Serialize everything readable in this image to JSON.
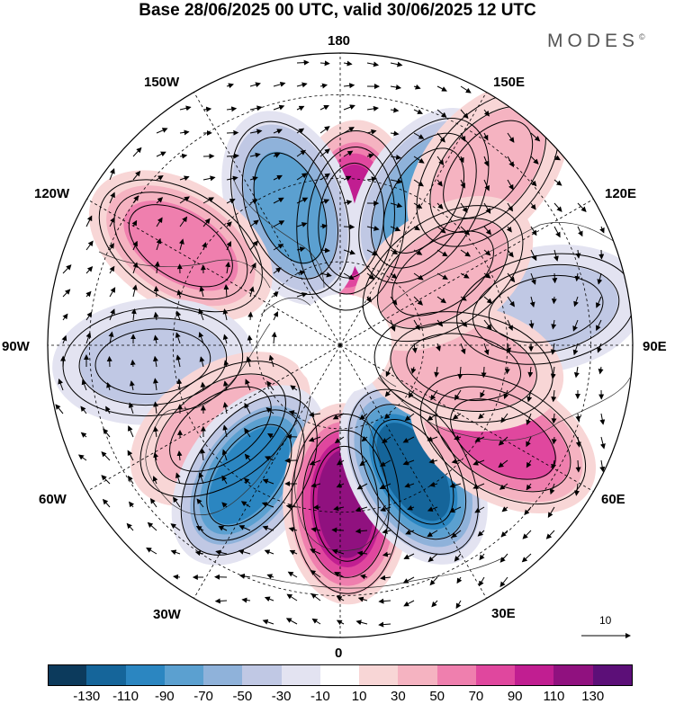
{
  "title": "Base 28/06/2025 00 UTC, valid 30/06/2025 12 UTC",
  "brand": {
    "name": "MODES",
    "mark": "©"
  },
  "longitude_labels": {
    "n180": "180",
    "e150": "150E",
    "e120": "120E",
    "e90": "90E",
    "e60": "60E",
    "e30": "30E",
    "s0": "0",
    "w30": "30W",
    "w60": "60W",
    "w90": "90W",
    "w120": "120W",
    "w150": "150W"
  },
  "reference_vector": {
    "label": "10"
  },
  "colorbar": {
    "colors": [
      "#0c3a5c",
      "#15659a",
      "#2b86c1",
      "#5ba0d0",
      "#8fb2da",
      "#c0c8e4",
      "#e3e3f1",
      "#ffffff",
      "#f8d6d6",
      "#f5b3c1",
      "#ef7fae",
      "#e0479e",
      "#c11e91",
      "#90117f",
      "#5c0f78"
    ],
    "labels": [
      "-130",
      "-110",
      "-90",
      "-70",
      "-50",
      "-30",
      "-10",
      "10",
      "30",
      "50",
      "70",
      "90",
      "110",
      "130"
    ]
  },
  "anomaly_field": {
    "units_reading": "same as colorbar",
    "centers": [
      {
        "lon": 175,
        "lat": 60,
        "value": 105
      },
      {
        "lon": 150,
        "lat": 50,
        "value": -70
      },
      {
        "lon": -160,
        "lat": 55,
        "value": -70
      },
      {
        "lon": 140,
        "lat": 35,
        "value": 40
      },
      {
        "lon": -122,
        "lat": 45,
        "value": 65
      },
      {
        "lon": -85,
        "lat": 45,
        "value": -40
      },
      {
        "lon": -55,
        "lat": 55,
        "value": 45
      },
      {
        "lon": -35,
        "lat": 52,
        "value": -90
      },
      {
        "lon": 2,
        "lat": 52,
        "value": 120
      },
      {
        "lon": 30,
        "lat": 55,
        "value": -110
      },
      {
        "lon": 60,
        "lat": 45,
        "value": 80
      },
      {
        "lon": 100,
        "lat": 40,
        "value": -40
      },
      {
        "lon": 80,
        "lat": 60,
        "value": 45
      },
      {
        "lon": 125,
        "lat": 60,
        "value": 30
      }
    ]
  }
}
